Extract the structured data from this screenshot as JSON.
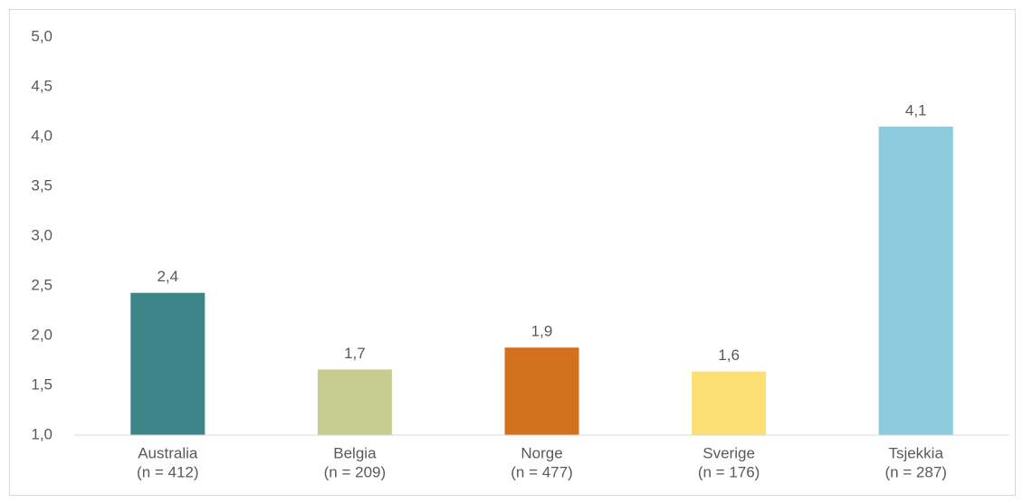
{
  "chart_data": {
    "type": "bar",
    "categories": [
      [
        "Australia",
        "(n = 412)"
      ],
      [
        "Belgia",
        "(n = 209)"
      ],
      [
        "Norge",
        "(n = 477)"
      ],
      [
        "Sverige",
        "(n = 176)"
      ],
      [
        "Tsjekkia",
        "(n = 287)"
      ]
    ],
    "values": [
      2.43,
      1.66,
      1.88,
      1.64,
      4.1
    ],
    "value_labels": [
      "2,4",
      "1,7",
      "1,9",
      "1,6",
      "4,1"
    ],
    "colors": [
      "#3e858a",
      "#c5cc8d",
      "#d4711c",
      "#fde073",
      "#8ccade"
    ],
    "ylim": [
      1.0,
      5.0
    ],
    "yticks": [
      {
        "value": 1.0,
        "label": "1,0"
      },
      {
        "value": 1.5,
        "label": "1,5"
      },
      {
        "value": 2.0,
        "label": "2,0"
      },
      {
        "value": 2.5,
        "label": "2,5"
      },
      {
        "value": 3.0,
        "label": "3,0"
      },
      {
        "value": 3.5,
        "label": "3,5"
      },
      {
        "value": 4.0,
        "label": "4,0"
      },
      {
        "value": 4.5,
        "label": "4,5"
      },
      {
        "value": 5.0,
        "label": "5,0"
      }
    ],
    "grid": false
  }
}
